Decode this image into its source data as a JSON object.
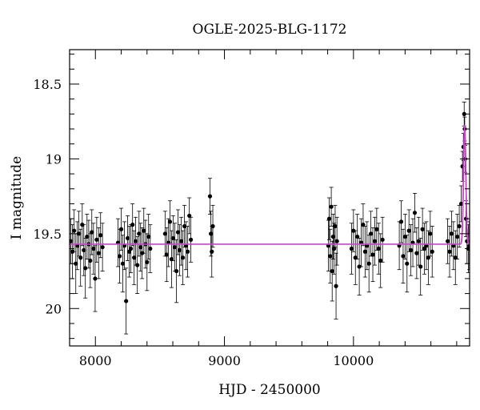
{
  "chart_data": {
    "type": "scatter",
    "title": "OGLE-2025-BLG-1172",
    "xlabel": "HJD - 2450000",
    "ylabel": "I magnitude",
    "xlim": [
      7800,
      10900
    ],
    "ylim": [
      20.25,
      18.27
    ],
    "y_inverted": true,
    "grid": false,
    "xticks": [
      8000,
      9000,
      10000
    ],
    "xtick_labels": [
      "8000",
      "9000",
      "10000"
    ],
    "yticks": [
      18.5,
      19,
      19.5,
      20
    ],
    "ytick_labels": [
      "18.5",
      "19",
      "19.5",
      "20"
    ],
    "colors": {
      "points": "#000000",
      "model": "#cc44cc",
      "frame": "#000000"
    },
    "model": {
      "name": "",
      "baseline": 19.57,
      "peak_time": 10862,
      "peak_magnitude": 18.78,
      "width_days": 9
    },
    "series": [
      {
        "name": "",
        "x": [
          7810,
          7822,
          7835,
          7848,
          7860,
          7872,
          7885,
          7898,
          7910,
          7922,
          7935,
          7948,
          7960,
          7972,
          7985,
          7998,
          8010,
          8025,
          8040,
          8055,
          8175,
          8188,
          8200,
          8212,
          8225,
          8238,
          8250,
          8262,
          8275,
          8288,
          8300,
          8312,
          8325,
          8338,
          8350,
          8362,
          8375,
          8388,
          8400,
          8412,
          8425,
          8540,
          8552,
          8565,
          8578,
          8590,
          8602,
          8615,
          8628,
          8640,
          8652,
          8665,
          8678,
          8690,
          8702,
          8715,
          8728,
          8740,
          8888,
          8895,
          8902,
          8910,
          9805,
          9812,
          9820,
          9828,
          9835,
          9842,
          9850,
          9858,
          9865,
          9872,
          9985,
          10000,
          10015,
          10030,
          10045,
          10060,
          10075,
          10090,
          10105,
          10120,
          10135,
          10150,
          10165,
          10180,
          10195,
          10210,
          10225,
          10355,
          10370,
          10385,
          10400,
          10415,
          10430,
          10445,
          10460,
          10475,
          10490,
          10505,
          10520,
          10535,
          10550,
          10565,
          10580,
          10595,
          10610,
          10730,
          10745,
          10760,
          10775,
          10790,
          10805,
          10820,
          10835,
          10845,
          10852,
          10858,
          10862,
          10866,
          10872,
          10880,
          10890,
          10898
        ],
        "y": [
          19.55,
          19.62,
          19.48,
          19.7,
          19.58,
          19.5,
          19.66,
          19.44,
          19.61,
          19.73,
          19.52,
          19.57,
          19.68,
          19.49,
          19.6,
          19.8,
          19.54,
          19.63,
          19.51,
          19.59,
          19.56,
          19.65,
          19.47,
          19.7,
          19.58,
          19.95,
          19.53,
          19.62,
          19.6,
          19.44,
          19.66,
          19.55,
          19.71,
          19.5,
          19.59,
          19.63,
          19.48,
          19.57,
          19.69,
          19.52,
          19.6,
          19.5,
          19.64,
          19.56,
          19.42,
          19.67,
          19.53,
          19.59,
          19.75,
          19.49,
          19.61,
          19.55,
          19.66,
          19.45,
          19.58,
          19.62,
          19.38,
          19.54,
          19.25,
          19.5,
          19.62,
          19.45,
          19.58,
          19.4,
          19.65,
          19.32,
          19.75,
          19.52,
          19.6,
          19.45,
          19.85,
          19.55,
          19.6,
          19.48,
          19.66,
          19.52,
          19.72,
          19.56,
          19.44,
          19.62,
          19.58,
          19.7,
          19.5,
          19.64,
          19.55,
          19.47,
          19.6,
          19.68,
          19.54,
          19.58,
          19.42,
          19.65,
          19.52,
          19.7,
          19.48,
          19.61,
          19.56,
          19.36,
          19.63,
          19.55,
          19.72,
          19.47,
          19.6,
          19.58,
          19.66,
          19.5,
          19.62,
          19.55,
          19.62,
          19.5,
          19.58,
          19.66,
          19.52,
          19.45,
          19.3,
          19.05,
          18.92,
          18.7,
          18.8,
          19.0,
          19.4,
          19.55,
          19.6,
          19.58
        ],
        "err": [
          0.15,
          0.18,
          0.14,
          0.2,
          0.16,
          0.15,
          0.19,
          0.14,
          0.17,
          0.2,
          0.15,
          0.16,
          0.18,
          0.15,
          0.17,
          0.22,
          0.15,
          0.17,
          0.15,
          0.16,
          0.16,
          0.18,
          0.14,
          0.19,
          0.16,
          0.22,
          0.15,
          0.17,
          0.16,
          0.14,
          0.18,
          0.16,
          0.19,
          0.15,
          0.16,
          0.17,
          0.15,
          0.16,
          0.19,
          0.15,
          0.16,
          0.15,
          0.18,
          0.16,
          0.14,
          0.19,
          0.15,
          0.16,
          0.21,
          0.15,
          0.17,
          0.16,
          0.18,
          0.14,
          0.16,
          0.17,
          0.12,
          0.15,
          0.12,
          0.15,
          0.17,
          0.14,
          0.17,
          0.14,
          0.18,
          0.13,
          0.2,
          0.15,
          0.17,
          0.14,
          0.22,
          0.16,
          0.17,
          0.14,
          0.18,
          0.15,
          0.19,
          0.16,
          0.14,
          0.17,
          0.16,
          0.19,
          0.15,
          0.18,
          0.16,
          0.14,
          0.17,
          0.18,
          0.15,
          0.16,
          0.14,
          0.18,
          0.15,
          0.19,
          0.14,
          0.17,
          0.16,
          0.13,
          0.17,
          0.16,
          0.19,
          0.14,
          0.17,
          0.16,
          0.18,
          0.15,
          0.17,
          0.15,
          0.17,
          0.15,
          0.16,
          0.18,
          0.15,
          0.14,
          0.12,
          0.1,
          0.09,
          0.08,
          0.08,
          0.09,
          0.12,
          0.15,
          0.16,
          0.16
        ]
      }
    ]
  }
}
